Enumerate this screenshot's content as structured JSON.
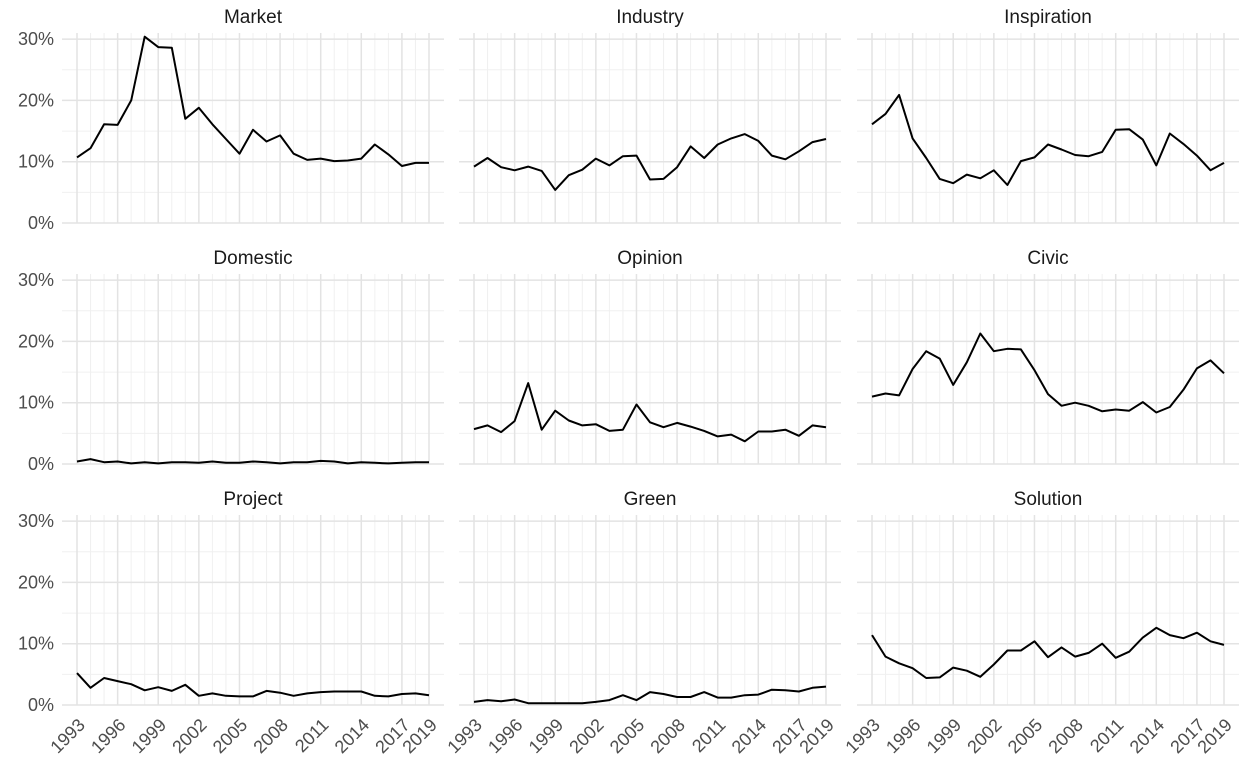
{
  "chart_data": {
    "type": "line",
    "layout": "facet 3x3, shared axes",
    "x": [
      1993,
      1994,
      1995,
      1996,
      1997,
      1998,
      1999,
      2000,
      2001,
      2002,
      2003,
      2004,
      2005,
      2006,
      2007,
      2008,
      2009,
      2010,
      2011,
      2012,
      2013,
      2014,
      2015,
      2016,
      2017,
      2018,
      2019
    ],
    "x_ticks": [
      1993,
      1996,
      1999,
      2002,
      2005,
      2008,
      2011,
      2014,
      2017,
      2019
    ],
    "y_ticks": [
      0,
      10,
      20,
      30
    ],
    "y_tick_labels": [
      "0%",
      "10%",
      "20%",
      "30%"
    ],
    "ylim": [
      0,
      31
    ],
    "grid": true,
    "line_color": "#000000",
    "panels": [
      {
        "title": "Market",
        "values": [
          10.7,
          12.2,
          16.1,
          16.0,
          20.0,
          30.4,
          28.7,
          28.6,
          17.0,
          18.8,
          16.1,
          13.7,
          11.3,
          15.2,
          13.3,
          14.3,
          11.3,
          10.3,
          10.5,
          10.1,
          10.2,
          10.5,
          12.8,
          11.2,
          9.3,
          9.8,
          9.8
        ]
      },
      {
        "title": "Industry",
        "values": [
          9.2,
          10.6,
          9.1,
          8.6,
          9.2,
          8.5,
          5.4,
          7.8,
          8.7,
          10.5,
          9.4,
          10.9,
          11.0,
          7.1,
          7.2,
          9.1,
          12.5,
          10.6,
          12.8,
          13.8,
          14.5,
          13.4,
          11.0,
          10.4,
          11.7,
          13.2,
          13.7
        ]
      },
      {
        "title": "Inspiration",
        "values": [
          16.1,
          17.8,
          20.9,
          13.8,
          10.6,
          7.2,
          6.5,
          7.9,
          7.3,
          8.6,
          6.2,
          10.1,
          10.7,
          12.8,
          12.0,
          11.1,
          10.9,
          11.6,
          15.2,
          15.3,
          13.6,
          9.4,
          14.6,
          12.9,
          11.0,
          8.6,
          9.8
        ]
      },
      {
        "title": "Domestic",
        "values": [
          0.4,
          0.8,
          0.3,
          0.4,
          0.1,
          0.3,
          0.1,
          0.3,
          0.3,
          0.2,
          0.4,
          0.2,
          0.2,
          0.4,
          0.3,
          0.1,
          0.3,
          0.3,
          0.5,
          0.4,
          0.1,
          0.3,
          0.2,
          0.1,
          0.2,
          0.3,
          0.3
        ]
      },
      {
        "title": "Opinion",
        "values": [
          5.7,
          6.3,
          5.2,
          7.0,
          13.2,
          5.6,
          8.7,
          7.1,
          6.3,
          6.5,
          5.4,
          5.6,
          9.7,
          6.8,
          6.0,
          6.7,
          6.1,
          5.4,
          4.5,
          4.8,
          3.7,
          5.3,
          5.3,
          5.6,
          4.6,
          6.3,
          6.0
        ]
      },
      {
        "title": "Civic",
        "values": [
          11.0,
          11.5,
          11.2,
          15.5,
          18.4,
          17.2,
          12.9,
          16.6,
          21.3,
          18.4,
          18.8,
          18.7,
          15.3,
          11.4,
          9.5,
          10.0,
          9.5,
          8.6,
          8.9,
          8.7,
          10.1,
          8.4,
          9.3,
          12.1,
          15.6,
          16.9,
          14.8
        ]
      },
      {
        "title": "Project",
        "values": [
          5.2,
          2.8,
          4.4,
          3.9,
          3.4,
          2.4,
          2.9,
          2.3,
          3.3,
          1.5,
          1.9,
          1.5,
          1.4,
          1.4,
          2.3,
          2.0,
          1.5,
          1.9,
          2.1,
          2.2,
          2.2,
          2.2,
          1.5,
          1.4,
          1.8,
          1.9,
          1.6
        ]
      },
      {
        "title": "Green",
        "values": [
          0.5,
          0.8,
          0.6,
          0.9,
          0.3,
          0.3,
          0.3,
          0.3,
          0.3,
          0.5,
          0.8,
          1.6,
          0.8,
          2.1,
          1.8,
          1.3,
          1.3,
          2.1,
          1.2,
          1.2,
          1.6,
          1.7,
          2.5,
          2.4,
          2.2,
          2.8,
          3.0
        ]
      },
      {
        "title": "Solution",
        "values": [
          11.4,
          7.9,
          6.8,
          6.0,
          4.4,
          4.5,
          6.1,
          5.6,
          4.6,
          6.6,
          8.9,
          8.9,
          10.4,
          7.8,
          9.4,
          7.9,
          8.5,
          10.0,
          7.7,
          8.7,
          11.0,
          12.6,
          11.4,
          10.9,
          11.8,
          10.4,
          9.8
        ]
      }
    ]
  }
}
